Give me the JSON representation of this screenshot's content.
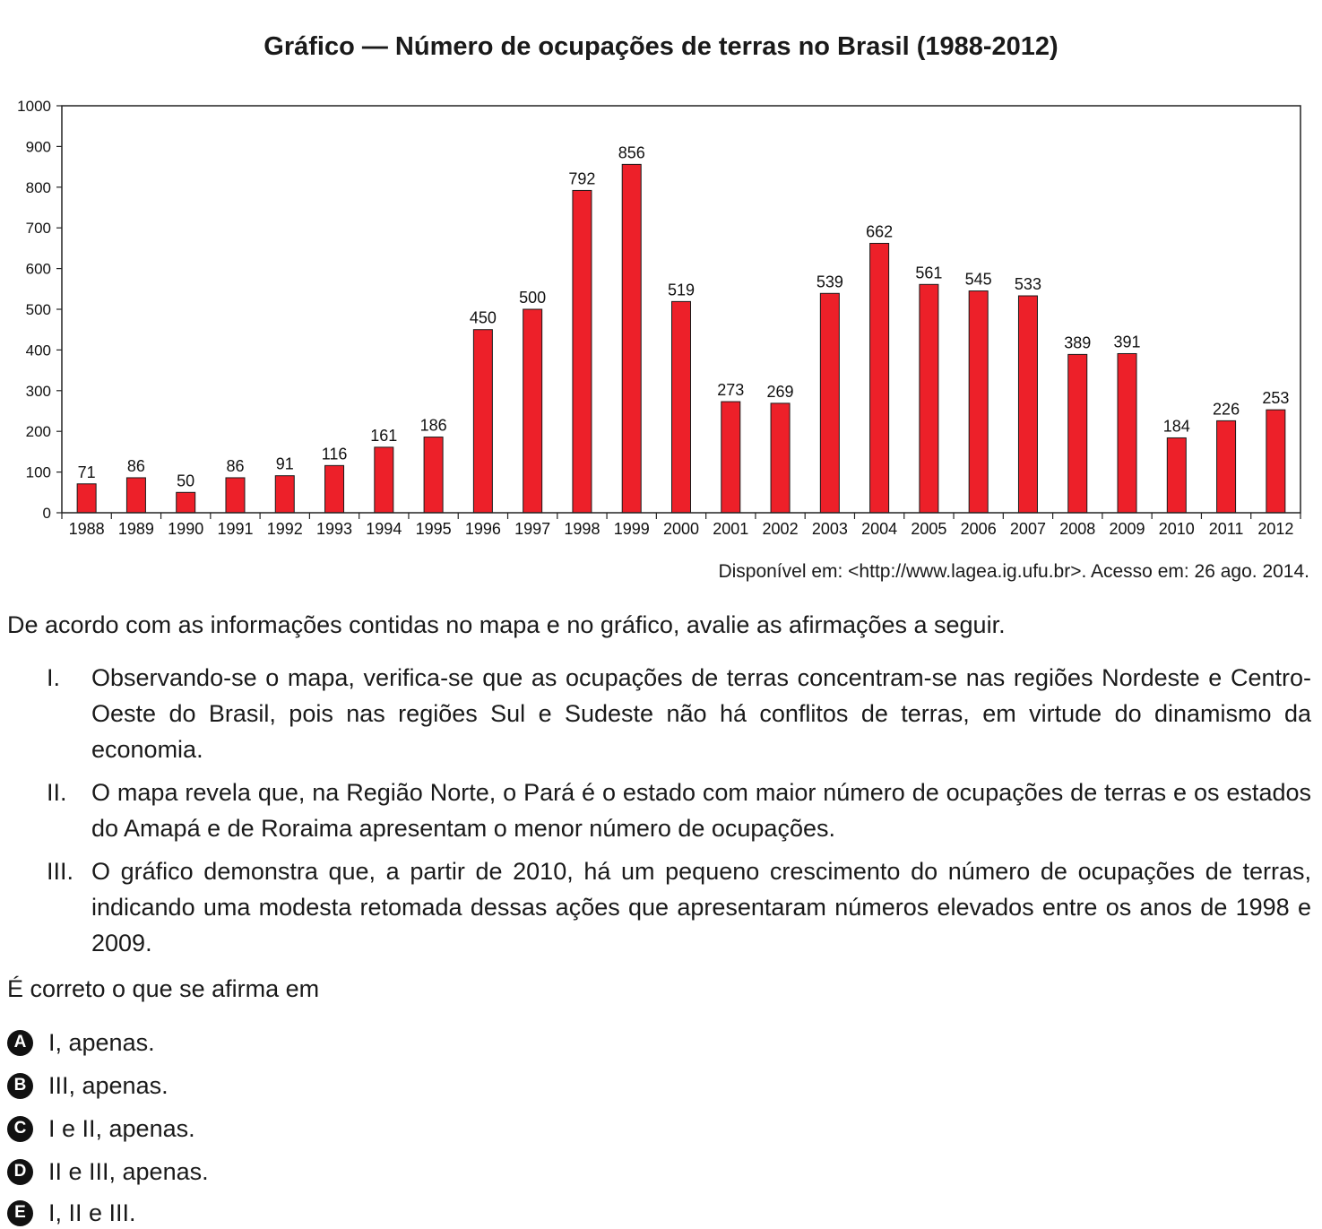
{
  "chart_data": {
    "type": "bar",
    "title": "Gráfico — Número de ocupações de terras no Brasil (1988-2012)",
    "categories": [
      "1988",
      "1989",
      "1990",
      "1991",
      "1992",
      "1993",
      "1994",
      "1995",
      "1996",
      "1997",
      "1998",
      "1999",
      "2000",
      "2001",
      "2002",
      "2003",
      "2004",
      "2005",
      "2006",
      "2007",
      "2008",
      "2009",
      "2010",
      "2011",
      "2012"
    ],
    "values": [
      71,
      86,
      50,
      86,
      91,
      116,
      161,
      186,
      450,
      500,
      792,
      856,
      519,
      273,
      269,
      539,
      662,
      561,
      545,
      533,
      389,
      391,
      184,
      226,
      253
    ],
    "ylim": [
      0,
      1000
    ],
    "yticks": [
      0,
      100,
      200,
      300,
      400,
      500,
      600,
      700,
      800,
      900,
      1000
    ],
    "grid": false,
    "bar_color": "#ed2029",
    "source": "Disponível em: <http://www.lagea.ig.ufu.br>. Acesso em: 26 ago. 2014."
  },
  "intro": "De acordo com as informações contidas no mapa e no gráfico, avalie as afirmações a seguir.",
  "statements": [
    {
      "num": "I.",
      "text": "Observando-se o mapa, verifica-se que as ocupações de terras concentram-se nas regiões Nordeste e Centro-Oeste do Brasil, pois nas regiões Sul e Sudeste não há conflitos de terras, em virtude do dinamismo da economia."
    },
    {
      "num": "II.",
      "text": "O mapa revela que, na Região Norte, o Pará é o estado com maior número de ocupações de terras e os estados do Amapá e de Roraima apresentam o menor número de ocupações."
    },
    {
      "num": "III.",
      "text": "O gráfico demonstra que, a partir de 2010, há um pequeno crescimento do número de ocupações de terras, indicando uma modesta retomada dessas ações que apresentaram números elevados entre os anos de 1998 e 2009."
    }
  ],
  "question": "É correto o que se afirma em",
  "options": [
    {
      "letter": "A",
      "text": "I, apenas."
    },
    {
      "letter": "B",
      "text": "III, apenas."
    },
    {
      "letter": "C",
      "text": "I e II, apenas."
    },
    {
      "letter": "D",
      "text": "II e III, apenas."
    },
    {
      "letter": "E",
      "text": "I, II e III."
    }
  ]
}
